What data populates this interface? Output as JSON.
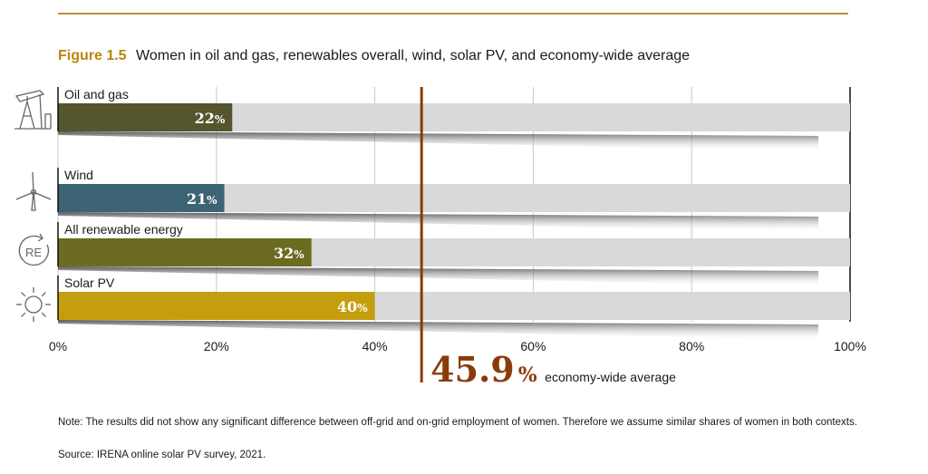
{
  "figure": {
    "label": "Figure 1.5",
    "title": "Women in oil and gas, renewables overall, wind, solar PV, and economy-wide average"
  },
  "chart_data": {
    "type": "bar",
    "orientation": "horizontal",
    "categories": [
      "Oil and gas",
      "Wind",
      "All renewable energy",
      "Solar PV"
    ],
    "values": [
      22,
      21,
      32,
      40
    ],
    "value_suffix": "%",
    "bar_colors": [
      "#55552e",
      "#3d6475",
      "#6b6b22",
      "#c49e0e"
    ],
    "icons": [
      "oil-pump-icon",
      "wind-turbine-icon",
      "renewable-energy-icon",
      "sun-icon"
    ],
    "xlim": [
      0,
      100
    ],
    "x_ticks": [
      0,
      20,
      40,
      60,
      80,
      100
    ],
    "x_tick_labels": [
      "0%",
      "20%",
      "40%",
      "60%",
      "80%",
      "100%"
    ],
    "reference_line": {
      "value": 45.9,
      "label_value": "45.9",
      "label_unit": "%",
      "label_text": "economy-wide average",
      "color": "#8b3a0a"
    },
    "grid": true,
    "track_color": "#d9d9d9",
    "title": "",
    "xlabel": "",
    "ylabel": ""
  },
  "note": "Note: The results did not show any significant difference between off-grid and on-grid employment of women. Therefore we assume similar shares of women in both contexts.",
  "source": "Source: IRENA online solar PV survey, 2021."
}
